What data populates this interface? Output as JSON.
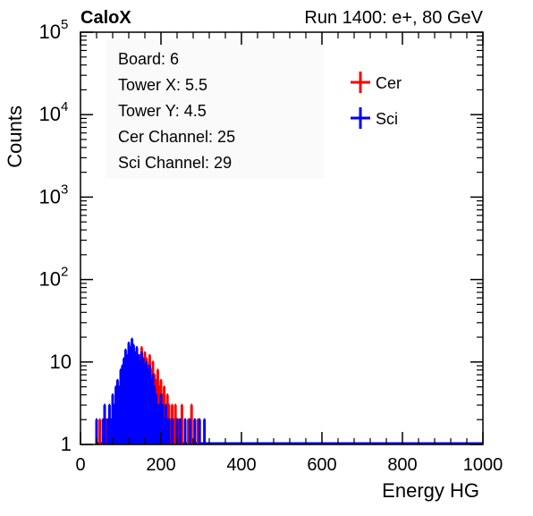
{
  "header": {
    "left_label": "CaloX",
    "right_label": "Run 1400: e+, 80 GeV"
  },
  "info_box": {
    "lines": [
      "Board: 6",
      "Tower X: 5.5",
      "Tower Y: 4.5",
      "Cer Channel: 25",
      "Sci Channel: 29"
    ]
  },
  "colors": {
    "cer": "#ff0000",
    "sci": "#0000ff",
    "axis": "#000000"
  },
  "chart_data": {
    "type": "histogram",
    "title": "",
    "xlabel": "Energy HG",
    "ylabel": "Counts",
    "xlim": [
      0,
      1000
    ],
    "ylim": [
      1,
      100000
    ],
    "y_scale": "log",
    "grid": false,
    "legend_position": "top-right",
    "x_ticks": [
      "0",
      "200",
      "400",
      "600",
      "800",
      "1000"
    ],
    "y_ticks": [
      {
        "value": 1,
        "base": "1",
        "exp": ""
      },
      {
        "value": 10,
        "base": "10",
        "exp": ""
      },
      {
        "value": 100,
        "base": "10",
        "exp": "2"
      },
      {
        "value": 1000,
        "base": "10",
        "exp": "3"
      },
      {
        "value": 10000,
        "base": "10",
        "exp": "4"
      },
      {
        "value": 100000,
        "base": "10",
        "exp": "5"
      }
    ],
    "bin_width": 4,
    "series": [
      {
        "name": "Cer",
        "color": "#ff0000",
        "points": [
          [
            48,
            2
          ],
          [
            64,
            2
          ],
          [
            72,
            2
          ],
          [
            80,
            3
          ],
          [
            86,
            2
          ],
          [
            92,
            4
          ],
          [
            96,
            2
          ],
          [
            100,
            5
          ],
          [
            104,
            3
          ],
          [
            108,
            6
          ],
          [
            112,
            8
          ],
          [
            116,
            7
          ],
          [
            120,
            9
          ],
          [
            124,
            12
          ],
          [
            128,
            10
          ],
          [
            132,
            13
          ],
          [
            136,
            11
          ],
          [
            140,
            14
          ],
          [
            144,
            9
          ],
          [
            148,
            12
          ],
          [
            152,
            15
          ],
          [
            156,
            10
          ],
          [
            160,
            13
          ],
          [
            164,
            11
          ],
          [
            168,
            9
          ],
          [
            172,
            12
          ],
          [
            176,
            8
          ],
          [
            180,
            10
          ],
          [
            184,
            7
          ],
          [
            188,
            6
          ],
          [
            192,
            8
          ],
          [
            196,
            5
          ],
          [
            200,
            6
          ],
          [
            204,
            4
          ],
          [
            208,
            5
          ],
          [
            212,
            3
          ],
          [
            216,
            4
          ],
          [
            220,
            3
          ],
          [
            224,
            2
          ],
          [
            228,
            3
          ],
          [
            232,
            2
          ],
          [
            236,
            3
          ],
          [
            240,
            2
          ],
          [
            244,
            2
          ],
          [
            252,
            3
          ],
          [
            260,
            2
          ],
          [
            268,
            2
          ],
          [
            276,
            3
          ],
          [
            284,
            2
          ],
          [
            292,
            2
          ]
        ]
      },
      {
        "name": "Sci",
        "color": "#0000ff",
        "points": [
          [
            40,
            2
          ],
          [
            56,
            2
          ],
          [
            60,
            3
          ],
          [
            68,
            2
          ],
          [
            72,
            3
          ],
          [
            76,
            2
          ],
          [
            80,
            4
          ],
          [
            84,
            3
          ],
          [
            88,
            5
          ],
          [
            92,
            6
          ],
          [
            96,
            5
          ],
          [
            100,
            8
          ],
          [
            104,
            9
          ],
          [
            108,
            11
          ],
          [
            112,
            14
          ],
          [
            116,
            12
          ],
          [
            120,
            17
          ],
          [
            124,
            15
          ],
          [
            128,
            19
          ],
          [
            132,
            16
          ],
          [
            136,
            13
          ],
          [
            140,
            15
          ],
          [
            144,
            12
          ],
          [
            148,
            10
          ],
          [
            152,
            13
          ],
          [
            156,
            11
          ],
          [
            160,
            9
          ],
          [
            164,
            10
          ],
          [
            168,
            8
          ],
          [
            172,
            9
          ],
          [
            176,
            6
          ],
          [
            180,
            7
          ],
          [
            184,
            5
          ],
          [
            188,
            4
          ],
          [
            192,
            3
          ],
          [
            196,
            3
          ],
          [
            200,
            4
          ],
          [
            204,
            3
          ],
          [
            208,
            2
          ],
          [
            212,
            3
          ],
          [
            216,
            2
          ],
          [
            220,
            2
          ],
          [
            228,
            2
          ],
          [
            240,
            2
          ],
          [
            248,
            2
          ],
          [
            260,
            2
          ],
          [
            272,
            2
          ],
          [
            284,
            2
          ],
          [
            296,
            2
          ],
          [
            308,
            2
          ]
        ]
      }
    ]
  }
}
